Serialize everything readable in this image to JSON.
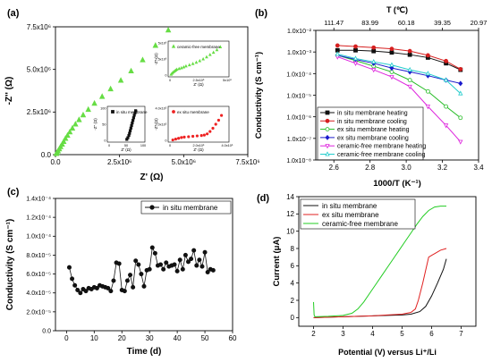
{
  "panels": {
    "a": {
      "label": "(a)"
    },
    "b": {
      "label": "(b)"
    },
    "c": {
      "label": "(c)"
    },
    "d": {
      "label": "(d)"
    }
  },
  "chart_data": [
    {
      "id": "a",
      "type": "scatter",
      "xlabel": "Z' (Ω)",
      "ylabel": "-Z'' (Ω)",
      "xlim": [
        0,
        7500000
      ],
      "ylim": [
        0,
        7500000
      ],
      "x_ticks": [
        0,
        2500000,
        5000000,
        7500000
      ],
      "x_tick_labels": [
        "0.0",
        "2.5x10⁶",
        "5.0x10⁶",
        "7.5x10⁶"
      ],
      "y_ticks": [
        0,
        2500000,
        5000000,
        7500000
      ],
      "y_tick_labels": [
        "0.0",
        "2.5x10⁶",
        "5.0x10⁶",
        "7.5x10⁶"
      ],
      "series": [
        {
          "name": "ceramic-free membrane",
          "color": "#66dd44",
          "marker": "triangle",
          "x": [
            30000,
            60000,
            100000,
            150000,
            200000,
            260000,
            320000,
            390000,
            470000,
            560000,
            660000,
            780000,
            920000,
            1080000,
            1280000,
            1520000,
            1820000,
            2150000,
            2550000,
            2950000,
            3400000,
            3900000,
            4400000
          ],
          "y": [
            50000,
            120000,
            210000,
            330000,
            460000,
            600000,
            760000,
            940000,
            1120000,
            1320000,
            1540000,
            1780000,
            2040000,
            2320000,
            2640000,
            3000000,
            3400000,
            3850000,
            4350000,
            4900000,
            5550000,
            6400000,
            7300000
          ]
        },
        {
          "name": "ex situ membrane",
          "color": "#ee2222",
          "marker": "circle",
          "x": [],
          "y": []
        },
        {
          "name": "in situ membrane",
          "color": "#111111",
          "marker": "square",
          "x": [],
          "y": []
        }
      ],
      "insets": [
        {
          "name": "ceramic-free membrane",
          "color": "#66dd44",
          "marker": "triangle",
          "xlabel": "Z' (Ω)",
          "ylabel": "-Z'' (Ω)",
          "x_tick_labels": [
            "0",
            "2.5x10⁶",
            "5x10⁶"
          ],
          "y_tick_labels": [
            "0",
            "2.5x10⁶",
            "5x10⁶"
          ],
          "xlim": [
            0,
            5000000
          ],
          "ylim": [
            0,
            5000000
          ],
          "x": [
            100000,
            200000,
            300000,
            400000,
            500000,
            600000,
            800000,
            1000000,
            1200000,
            1400000,
            1700000,
            2000000,
            2300000,
            2600000,
            2900000,
            3200000,
            3500000,
            3800000,
            4100000,
            4400000
          ],
          "y": [
            100000,
            280000,
            450000,
            600000,
            740000,
            860000,
            980000,
            1100000,
            1230000,
            1380000,
            1560000,
            1750000,
            1960000,
            2200000,
            2480000,
            2800000,
            3150000,
            3500000,
            3900000,
            4350000
          ]
        },
        {
          "name": "in situ membrane",
          "color": "#111111",
          "marker": "square",
          "xlabel": "Z' (Ω)",
          "ylabel": "-Z'' (Ω)",
          "x_tick_labels": [
            "0",
            "50",
            "100"
          ],
          "y_tick_labels": [
            "0",
            "50",
            "100"
          ],
          "xlim": [
            0,
            100
          ],
          "ylim": [
            0,
            100
          ],
          "x": [
            52,
            55,
            58,
            60,
            62,
            64,
            66,
            68,
            70,
            72,
            74,
            76,
            78
          ],
          "y": [
            3,
            8,
            15,
            22,
            30,
            38,
            46,
            54,
            62,
            70,
            78,
            85,
            92
          ]
        },
        {
          "name": "ex situ membrane",
          "color": "#ee2222",
          "marker": "circle",
          "xlabel": "Z' (Ω)",
          "ylabel": "-Z'' (Ω)",
          "x_tick_labels": [
            "0",
            "2.0x10⁵",
            "4.0x10⁵"
          ],
          "y_tick_labels": [
            "0",
            "2.0x10⁵",
            "4.0x10⁵"
          ],
          "xlim": [
            0,
            400000
          ],
          "ylim": [
            0,
            400000
          ],
          "x": [
            20000,
            40000,
            60000,
            80000,
            100000,
            130000,
            160000,
            190000,
            220000,
            240000,
            260000,
            280000,
            300000,
            320000,
            340000,
            360000
          ],
          "y": [
            5000,
            15000,
            25000,
            35000,
            40000,
            45000,
            50000,
            55000,
            60000,
            65000,
            80000,
            110000,
            150000,
            200000,
            250000,
            310000
          ]
        }
      ]
    },
    {
      "id": "b",
      "type": "line",
      "xlabel": "1000/T (K⁻¹)",
      "ylabel": "Conductivity (S cm⁻¹)",
      "top_xlabel": "T (℃)",
      "yscale": "log",
      "xlim": [
        2.5,
        3.4
      ],
      "ylim_exp": [
        -8,
        -2
      ],
      "x_ticks": [
        2.6,
        2.8,
        3.0,
        3.2,
        3.4
      ],
      "x_tick_labels": [
        "2.6",
        "2.8",
        "3.0",
        "3.2",
        "3.4"
      ],
      "y_tick_labels": [
        "1.0x10⁻⁸",
        "1.0x10⁻⁷",
        "1.0x10⁻⁶",
        "1.0x10⁻⁵",
        "1.0x10⁻⁴",
        "1.0x10⁻³",
        "1.0x10⁻²"
      ],
      "top_tick_x": [
        2.6,
        2.8,
        3.0,
        3.2,
        3.4
      ],
      "top_tick_labels": [
        "111.47",
        "83.99",
        "60.18",
        "39.35",
        "20.97"
      ],
      "legend_position": "bottom-left",
      "series": [
        {
          "name": "in situ membrane heating",
          "color": "#111111",
          "marker": "square",
          "filled": true,
          "x": [
            2.62,
            2.72,
            2.82,
            2.92,
            3.02,
            3.12,
            3.22,
            3.3
          ],
          "y": [
            0.0012,
            0.0012,
            0.0011,
            0.00095,
            0.00075,
            0.00055,
            0.0003,
            0.00015
          ]
        },
        {
          "name": "in situ membrane cooling",
          "color": "#d62020",
          "marker": "circle",
          "filled": true,
          "x": [
            2.62,
            2.72,
            2.82,
            2.92,
            3.02,
            3.12,
            3.22,
            3.3
          ],
          "y": [
            0.002,
            0.0018,
            0.0016,
            0.0014,
            0.0011,
            0.0007,
            0.00038,
            0.00016
          ]
        },
        {
          "name": "ex situ membrane heating",
          "color": "#22bb22",
          "marker": "circle",
          "filled": false,
          "x": [
            2.62,
            2.72,
            2.82,
            2.92,
            3.02,
            3.12,
            3.22,
            3.3
          ],
          "y": [
            0.0007,
            0.0004,
            0.00022,
            0.00012,
            5e-05,
            1.5e-05,
            3e-06,
            9e-07
          ]
        },
        {
          "name": "ex situ membrane cooling",
          "color": "#1a1acc",
          "marker": "diamond",
          "filled": true,
          "x": [
            2.62,
            2.72,
            2.82,
            2.92,
            3.02,
            3.12,
            3.22,
            3.3
          ],
          "y": [
            0.0007,
            0.00045,
            0.0003,
            0.00018,
            0.00012,
            8e-05,
            5e-05,
            3.5e-05
          ]
        },
        {
          "name": "ceramic-free membrane heating",
          "color": "#dd22dd",
          "marker": "triangle-down",
          "filled": false,
          "x": [
            2.62,
            2.72,
            2.82,
            2.92,
            3.02,
            3.12,
            3.22,
            3.3
          ],
          "y": [
            0.0006,
            0.0003,
            0.00015,
            7e-05,
            2.5e-05,
            3e-06,
            4e-07,
            7e-08
          ]
        },
        {
          "name": "ceramic-free membrane cooling",
          "color": "#22cccc",
          "marker": "triangle",
          "filled": false,
          "x": [
            2.62,
            2.72,
            2.82,
            2.92,
            3.02,
            3.12,
            3.22,
            3.3
          ],
          "y": [
            0.0008,
            0.0005,
            0.00035,
            0.00025,
            0.00015,
            0.0001,
            5e-05,
            1.2e-05
          ]
        }
      ]
    },
    {
      "id": "c",
      "type": "line",
      "xlabel": "Time (d)",
      "ylabel": "Conductivity (S cm⁻¹)",
      "xlim": [
        -4,
        60
      ],
      "ylim": [
        0,
        0.00014
      ],
      "x_ticks": [
        0,
        10,
        20,
        30,
        40,
        50,
        60
      ],
      "x_tick_labels": [
        "0",
        "10",
        "20",
        "30",
        "40",
        "50",
        "60"
      ],
      "y_ticks": [
        0,
        2e-05,
        4e-05,
        6e-05,
        8e-05,
        0.0001,
        0.00012,
        0.00014
      ],
      "y_tick_labels": [
        "0.0",
        "2.0x10⁻⁵",
        "4.0x10⁻⁵",
        "6.0x10⁻⁵",
        "8.0x10⁻⁵",
        "1.0x10⁻⁴",
        "1.2x10⁻⁴",
        "1.4x10⁻⁴"
      ],
      "legend_position": "top-right",
      "series": [
        {
          "name": "in situ membrane",
          "color": "#111111",
          "marker": "circle",
          "x": [
            1,
            2,
            3,
            4,
            5,
            6,
            7,
            8,
            9,
            10,
            11,
            12,
            13,
            14,
            15,
            16,
            17,
            18,
            19,
            20,
            21,
            22,
            23,
            24,
            25,
            26,
            27,
            28,
            29,
            30,
            31,
            32,
            33,
            34,
            35,
            36,
            37,
            38,
            39,
            40,
            41,
            42,
            43,
            44,
            45,
            46,
            47,
            48,
            49,
            50,
            51,
            52,
            53
          ],
          "y": [
            6.7e-05,
            5.5e-05,
            4.8e-05,
            4.3e-05,
            4e-05,
            4.4e-05,
            4.2e-05,
            4.5e-05,
            4.4e-05,
            4.6e-05,
            4.5e-05,
            4.8e-05,
            4.7e-05,
            4.6e-05,
            4.5e-05,
            4.2e-05,
            5.3e-05,
            7.2e-05,
            7.1e-05,
            4.3e-05,
            4.2e-05,
            5.3e-05,
            5.9e-05,
            4.6e-05,
            7.4e-05,
            7e-05,
            6e-05,
            4.7e-05,
            6.4e-05,
            6.5e-05,
            8.8e-05,
            8.2e-05,
            6.9e-05,
            7e-05,
            6.5e-05,
            7.2e-05,
            6.8e-05,
            6.9e-05,
            7e-05,
            6.3e-05,
            7.5e-05,
            6.5e-05,
            8e-05,
            7.3e-05,
            7.6e-05,
            8.5e-05,
            6.9e-05,
            7.5e-05,
            6.8e-05,
            8.3e-05,
            6.2e-05,
            6.5e-05,
            6.4e-05
          ]
        }
      ]
    },
    {
      "id": "d",
      "type": "line",
      "xlabel": "Potential (V) versus Li⁺/Li",
      "ylabel": "Current (μA)",
      "xlim": [
        1.5,
        7.5
      ],
      "ylim": [
        -1,
        14
      ],
      "x_ticks": [
        2,
        3,
        4,
        5,
        6,
        7
      ],
      "x_tick_labels": [
        "2",
        "3",
        "4",
        "5",
        "6",
        "7"
      ],
      "y_ticks": [
        0,
        2,
        4,
        6,
        8,
        10,
        12,
        14
      ],
      "y_tick_labels": [
        "0",
        "2",
        "4",
        "6",
        "8",
        "10",
        "12",
        "14"
      ],
      "legend_position": "top-left",
      "series": [
        {
          "name": "in situ membrane",
          "color": "#111111",
          "x": [
            2.0,
            2.5,
            3.0,
            3.5,
            4.0,
            4.5,
            5.0,
            5.3,
            5.6,
            5.8,
            6.0,
            6.2,
            6.4,
            6.5
          ],
          "y": [
            0.0,
            0.05,
            0.1,
            0.15,
            0.2,
            0.25,
            0.3,
            0.4,
            0.7,
            1.3,
            2.5,
            4.0,
            5.6,
            6.8
          ]
        },
        {
          "name": "ex situ membrane",
          "color": "#e02020",
          "x": [
            2.0,
            2.5,
            3.0,
            3.5,
            4.0,
            4.5,
            5.0,
            5.3,
            5.45,
            5.55,
            5.7,
            5.8,
            5.9,
            6.0,
            6.1,
            6.3,
            6.5
          ],
          "y": [
            0.0,
            0.05,
            0.1,
            0.15,
            0.2,
            0.3,
            0.4,
            0.6,
            1.0,
            2.0,
            4.0,
            5.5,
            7.0,
            7.2,
            7.4,
            7.8,
            8.0
          ]
        },
        {
          "name": "ceramic-free membrane",
          "color": "#22cc22",
          "x": [
            2.0,
            2.02,
            2.05,
            2.5,
            3.0,
            3.3,
            3.5,
            3.7,
            3.9,
            4.1,
            4.3,
            4.5,
            4.7,
            4.9,
            5.1,
            5.3,
            5.5,
            5.7,
            5.9,
            6.1,
            6.3,
            6.5
          ],
          "y": [
            1.8,
            0.3,
            0.1,
            0.15,
            0.25,
            0.5,
            1.0,
            1.8,
            2.8,
            3.8,
            4.8,
            5.8,
            6.8,
            7.8,
            8.8,
            9.8,
            10.8,
            11.7,
            12.4,
            12.8,
            12.9,
            12.9
          ]
        }
      ]
    }
  ]
}
